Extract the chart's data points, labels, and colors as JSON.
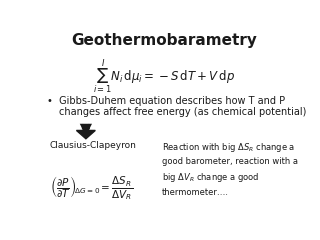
{
  "title": "Geothermobarametry",
  "title_fontsize": 11,
  "title_fontweight": "bold",
  "bg_color": "#ffffff",
  "main_equation": "$\\sum_{i=1}^{I} N_i \\, \\mathrm{d}\\mu_i = -S \\, \\mathrm{d}T + V \\, \\mathrm{d}p$",
  "bullet_line1": "Gibbs-Duhem equation describes how T and P",
  "bullet_line2": "changes affect free energy (as chemical potential)",
  "clausius_label": "Clausius-Clapeyron",
  "clausius_eq": "$\\left(\\dfrac{\\partial P}{\\partial T}\\right)_{\\!\\Delta G=0} = \\dfrac{\\Delta S_R}{\\Delta V_R}$",
  "side_text": "Reaction with big $\\Delta S_R$ change a\ngood barometer, reaction with a\nbig $\\Delta V_R$ change a good\nthermometer….",
  "text_color": "#1a1a1a",
  "eq_fontsize": 8.5,
  "bullet_fontsize": 7.0,
  "clausius_label_fontsize": 6.5,
  "clausius_eq_fontsize": 7.5,
  "side_fontsize": 6.0
}
